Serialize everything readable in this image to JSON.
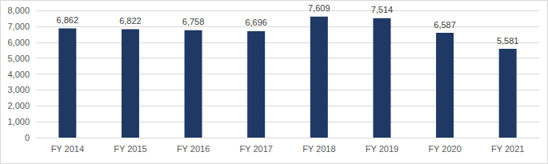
{
  "chart_data": {
    "type": "bar",
    "categories": [
      "FY 2014",
      "FY 2015",
      "FY 2016",
      "FY 2017",
      "FY 2018",
      "FY 2019",
      "FY 2020",
      "FY 2021"
    ],
    "values": [
      6862,
      6822,
      6758,
      6696,
      7609,
      7514,
      6587,
      5581
    ],
    "value_labels": [
      "6,862",
      "6,822",
      "6,758",
      "6,696",
      "7,609",
      "7,514",
      "6,587",
      "5,581"
    ],
    "color": "#1f3864",
    "ylim": [
      0,
      8000
    ],
    "yticks": [
      0,
      {
        "value": 1000,
        "label": "1,000"
      },
      {
        "value": 2000,
        "label": "2,000"
      },
      {
        "value": 3000,
        "label": "3,000"
      },
      {
        "value": 4000,
        "label": "4,000"
      },
      {
        "value": 5000,
        "label": "5,000"
      },
      {
        "value": 6000,
        "label": "6,000"
      },
      {
        "value": 7000,
        "label": "7,000"
      },
      {
        "value": 8000,
        "label": "8,000"
      }
    ],
    "grid": true,
    "data_labels": true
  }
}
